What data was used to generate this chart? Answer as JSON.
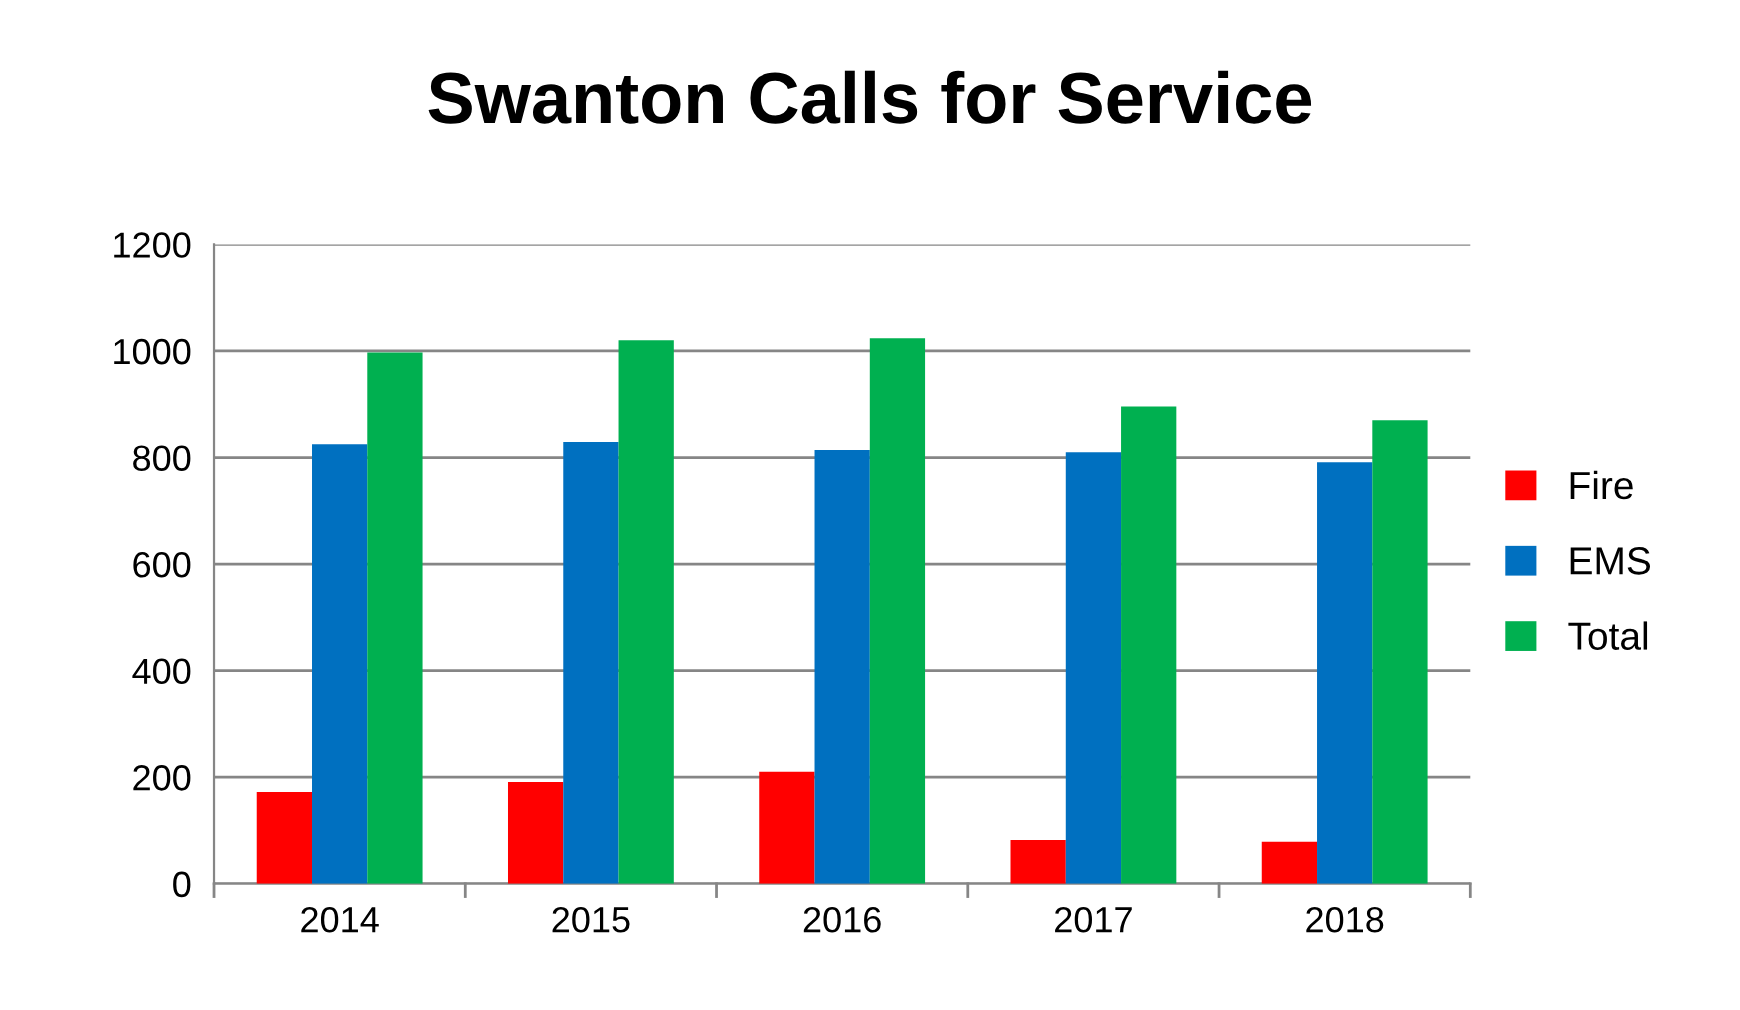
{
  "chart_data": {
    "type": "bar",
    "title": "Swanton Calls for Service",
    "categories": [
      "2014",
      "2015",
      "2016",
      "2017",
      "2018"
    ],
    "series": [
      {
        "name": "Fire",
        "color": "#ff0000",
        "values": [
          172,
          191,
          210,
          82,
          79
        ]
      },
      {
        "name": "EMS",
        "color": "#0070c0",
        "values": [
          825,
          829,
          814,
          810,
          791
        ]
      },
      {
        "name": "Total",
        "color": "#00b050",
        "values": [
          997,
          1020,
          1024,
          896,
          870
        ]
      }
    ],
    "ylim": [
      0,
      1200
    ],
    "yticks": [
      0,
      200,
      400,
      600,
      800,
      1000,
      1200
    ],
    "grid": "y",
    "legend": "right"
  }
}
